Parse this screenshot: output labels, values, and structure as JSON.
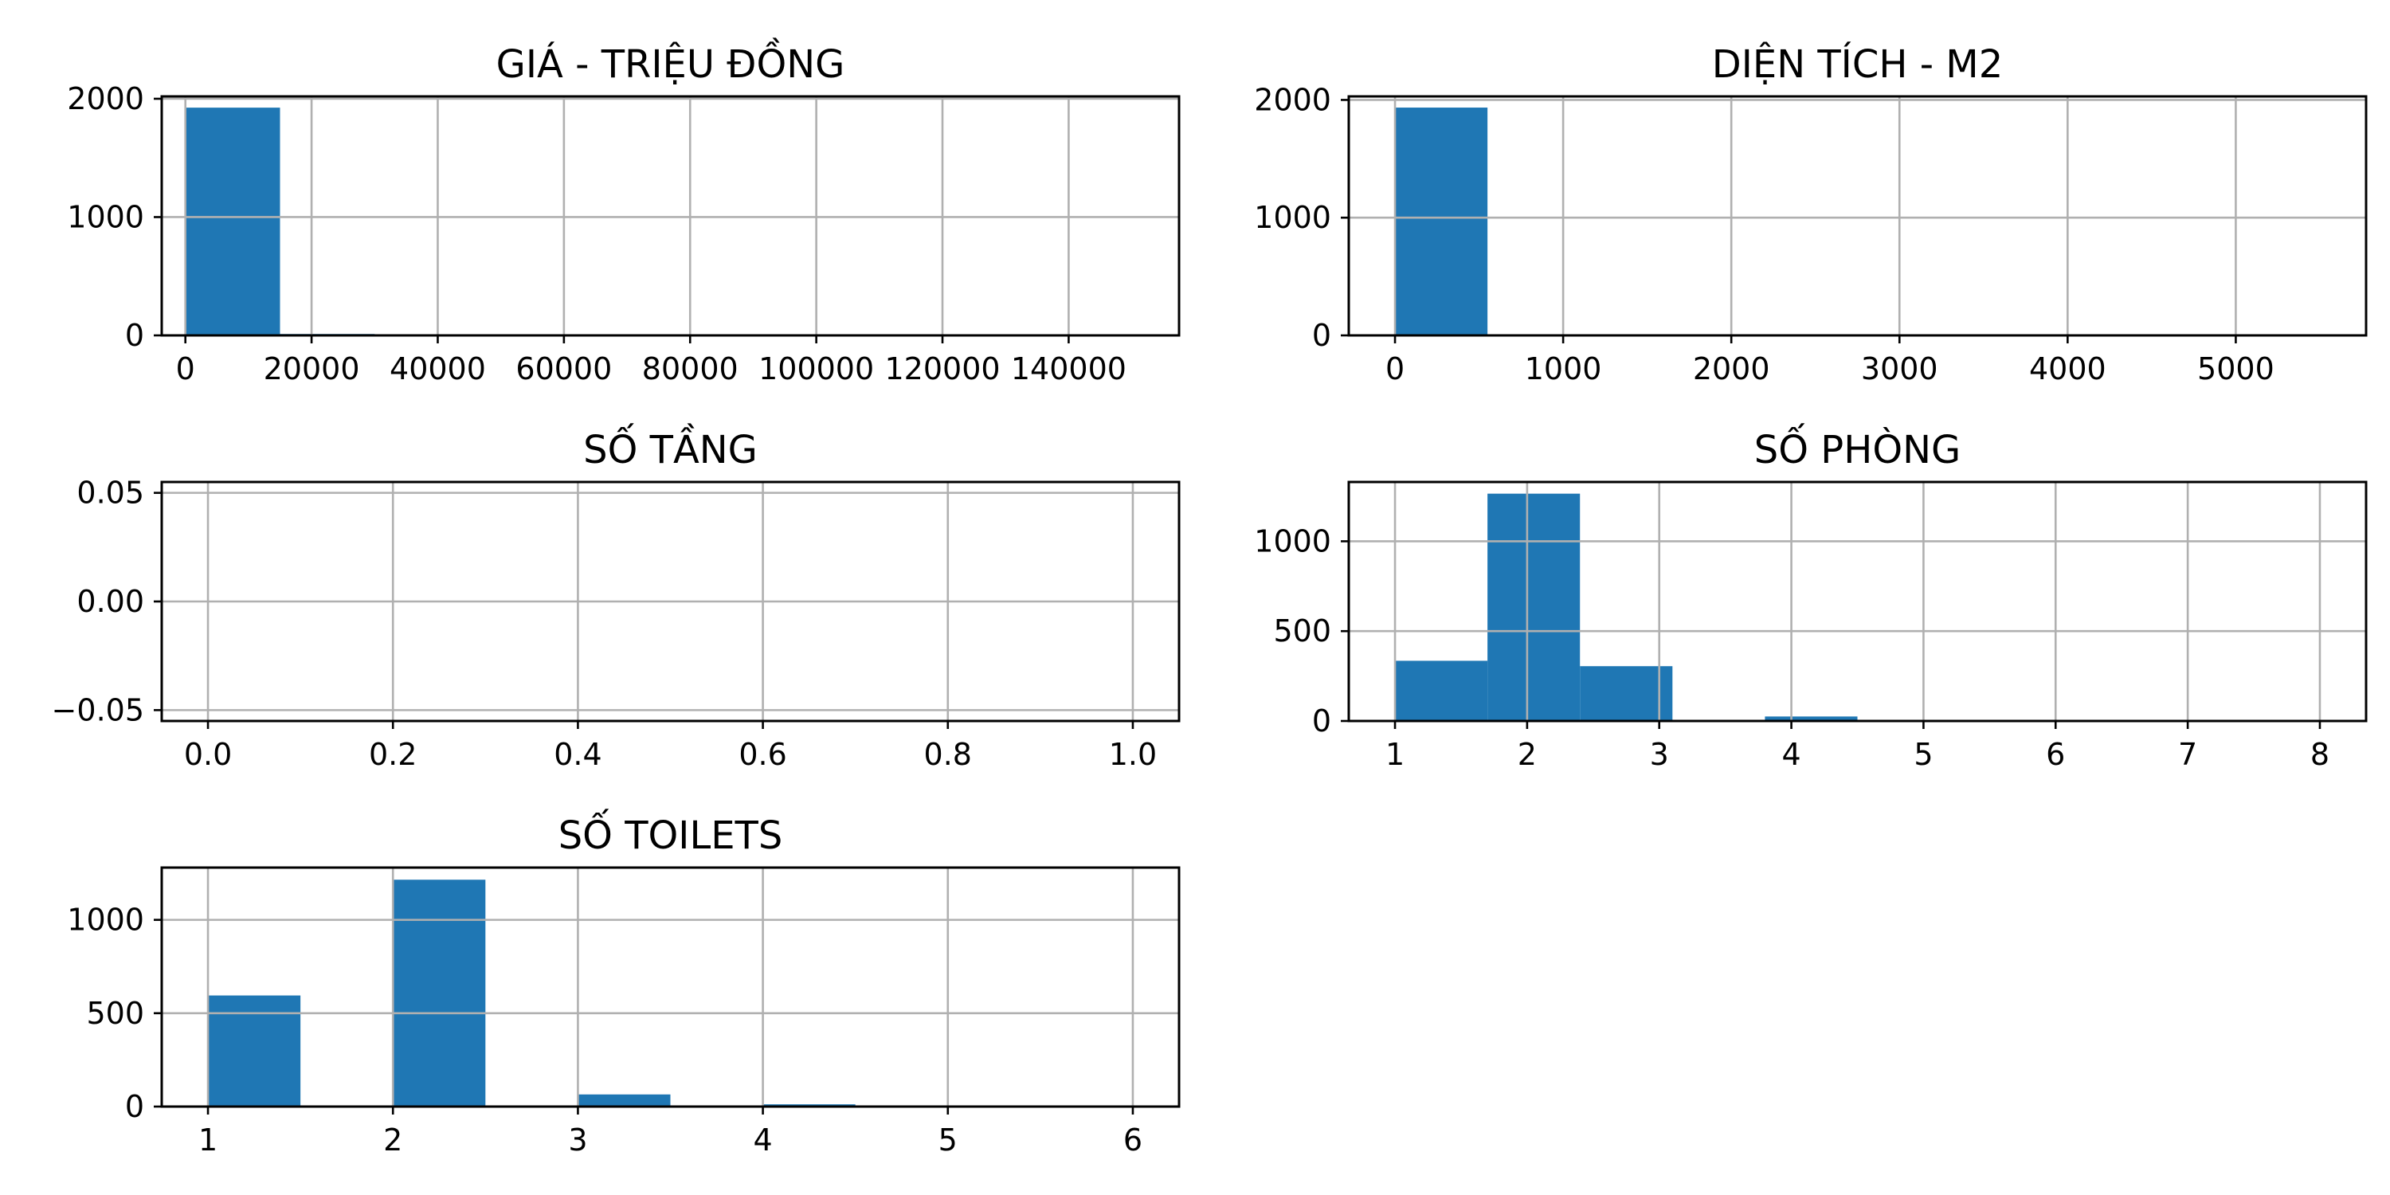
{
  "chart_data": [
    {
      "type": "bar",
      "title": "GIÁ - TRIỆU ĐỒNG",
      "xlim": [
        -3750,
        157500
      ],
      "ylim": [
        0,
        2020
      ],
      "xticks": [
        0,
        20000,
        40000,
        60000,
        80000,
        100000,
        120000,
        140000
      ],
      "xtick_labels": [
        "0",
        "20000",
        "40000",
        "60000",
        "80000",
        "100000",
        "120000",
        "140000"
      ],
      "yticks": [
        0,
        1000,
        2000
      ],
      "ytick_labels": [
        "0",
        "1000",
        "2000"
      ],
      "bins": [
        0,
        15000,
        30000,
        45000,
        60000,
        75000,
        90000,
        105000,
        120000,
        135000,
        150000
      ],
      "counts": [
        1925,
        12,
        3,
        1,
        0,
        0,
        0,
        0,
        0,
        1
      ],
      "grid": true
    },
    {
      "type": "bar",
      "title": "DIỆN TÍCH - M2",
      "xlim": [
        -275,
        5775
      ],
      "ylim": [
        0,
        2030
      ],
      "xticks": [
        0,
        1000,
        2000,
        3000,
        4000,
        5000
      ],
      "xtick_labels": [
        "0",
        "1000",
        "2000",
        "3000",
        "4000",
        "5000"
      ],
      "yticks": [
        0,
        1000,
        2000
      ],
      "ytick_labels": [
        "0",
        "1000",
        "2000"
      ],
      "bins": [
        0,
        550,
        1100,
        1650,
        2200,
        2750,
        3300,
        3850,
        4400,
        4950,
        5500
      ],
      "counts": [
        1935,
        3,
        1,
        0,
        0,
        0,
        0,
        0,
        0,
        1
      ],
      "grid": true
    },
    {
      "type": "bar",
      "title": "SỐ TẦNG",
      "xlim": [
        -0.05,
        1.05
      ],
      "ylim": [
        -0.055,
        0.055
      ],
      "xticks": [
        0.0,
        0.2,
        0.4,
        0.6,
        0.8,
        1.0
      ],
      "xtick_labels": [
        "0.0",
        "0.2",
        "0.4",
        "0.6",
        "0.8",
        "1.0"
      ],
      "yticks": [
        -0.05,
        0.0,
        0.05
      ],
      "ytick_labels": [
        "−0.05",
        "0.00",
        "0.05"
      ],
      "bins": [
        0,
        0.1,
        0.2,
        0.3,
        0.4,
        0.5,
        0.6,
        0.7,
        0.8,
        0.9,
        1.0
      ],
      "counts": [
        0,
        0,
        0,
        0,
        0,
        0,
        0,
        0,
        0,
        0
      ],
      "grid": true
    },
    {
      "type": "bar",
      "title": "SỐ PHÒNG",
      "xlim": [
        0.65,
        8.35
      ],
      "ylim": [
        0,
        1330
      ],
      "xticks": [
        1,
        2,
        3,
        4,
        5,
        6,
        7,
        8
      ],
      "xtick_labels": [
        "1",
        "2",
        "3",
        "4",
        "5",
        "6",
        "7",
        "8"
      ],
      "yticks": [
        0,
        500,
        1000
      ],
      "ytick_labels": [
        "0",
        "500",
        "1000"
      ],
      "bins": [
        1.0,
        1.7,
        2.4,
        3.1,
        3.8,
        4.5,
        5.2,
        5.9,
        6.6,
        7.3,
        8.0
      ],
      "counts": [
        335,
        1265,
        305,
        0,
        25,
        6,
        0,
        0,
        0,
        1
      ],
      "grid": true
    },
    {
      "type": "bar",
      "title": "SỐ TOILETS",
      "xlim": [
        0.75,
        6.25
      ],
      "ylim": [
        0,
        1280
      ],
      "xticks": [
        1,
        2,
        3,
        4,
        5,
        6
      ],
      "xtick_labels": [
        "1",
        "2",
        "3",
        "4",
        "5",
        "6"
      ],
      "yticks": [
        0,
        500,
        1000
      ],
      "ytick_labels": [
        "0",
        "500",
        "1000"
      ],
      "bins": [
        1.0,
        1.5,
        2.0,
        2.5,
        3.0,
        3.5,
        4.0,
        4.5,
        5.0,
        5.5,
        6.0
      ],
      "counts": [
        595,
        0,
        1215,
        0,
        65,
        0,
        12,
        0,
        0,
        1
      ],
      "grid": true
    }
  ]
}
